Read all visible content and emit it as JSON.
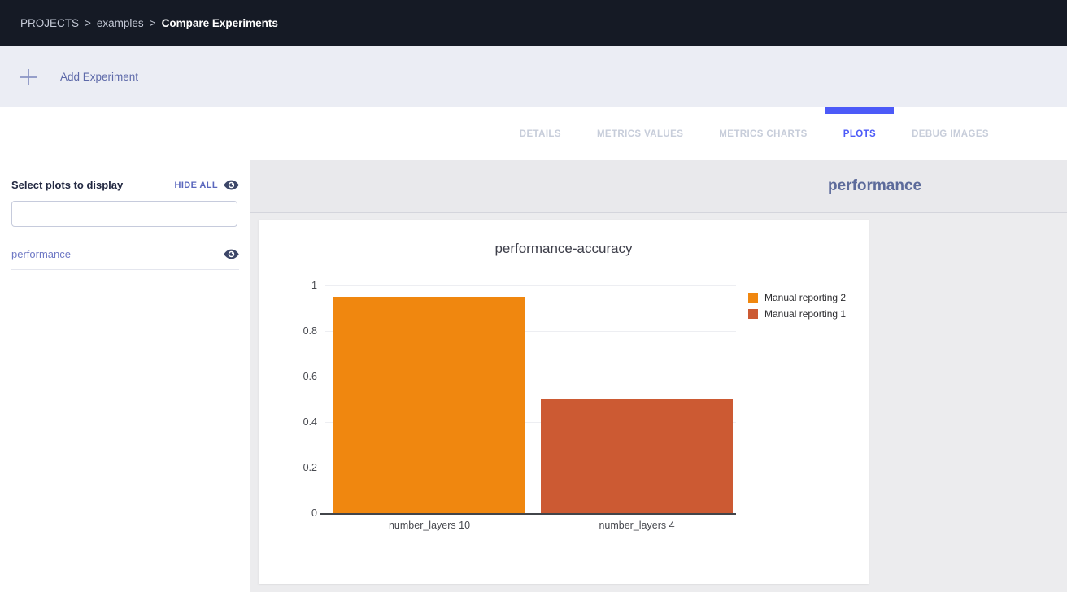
{
  "breadcrumb": {
    "root": "PROJECTS",
    "project": "examples",
    "page": "Compare Experiments",
    "separator": ">"
  },
  "toolbar": {
    "add_experiment_label": "Add Experiment",
    "add_icon": "plus-icon"
  },
  "tabs": [
    {
      "label": "DETAILS",
      "active": false
    },
    {
      "label": "METRICS VALUES",
      "active": false
    },
    {
      "label": "METRICS CHARTS",
      "active": false
    },
    {
      "label": "PLOTS",
      "active": true
    },
    {
      "label": "DEBUG IMAGES",
      "active": false
    }
  ],
  "sidebar": {
    "title": "Select plots to display",
    "hide_all_label": "HIDE ALL",
    "hide_all_icon": "eye-icon",
    "search_value": "",
    "search_placeholder": "",
    "plots": [
      {
        "label": "performance",
        "visible": true,
        "icon": "eye-icon"
      }
    ]
  },
  "main": {
    "group_title": "performance"
  },
  "chart_data": {
    "type": "bar",
    "title": "performance-accuracy",
    "categories": [
      "number_layers 10",
      "number_layers 4"
    ],
    "series": [
      {
        "name": "Manual reporting 2",
        "color": "#f0870f",
        "category": "number_layers 10",
        "value": 0.95
      },
      {
        "name": "Manual reporting 1",
        "color": "#cc5a33",
        "category": "number_layers 4",
        "value": 0.5
      }
    ],
    "ylim": [
      0,
      1
    ],
    "yticks": [
      0,
      0.2,
      0.4,
      0.6,
      0.8,
      1
    ],
    "grid": true,
    "legend_position": "right"
  },
  "colors": {
    "accent": "#4c5af8",
    "topbar_bg": "#151a25",
    "bar_orange": "#f0870f",
    "bar_red": "#cc5a33"
  }
}
